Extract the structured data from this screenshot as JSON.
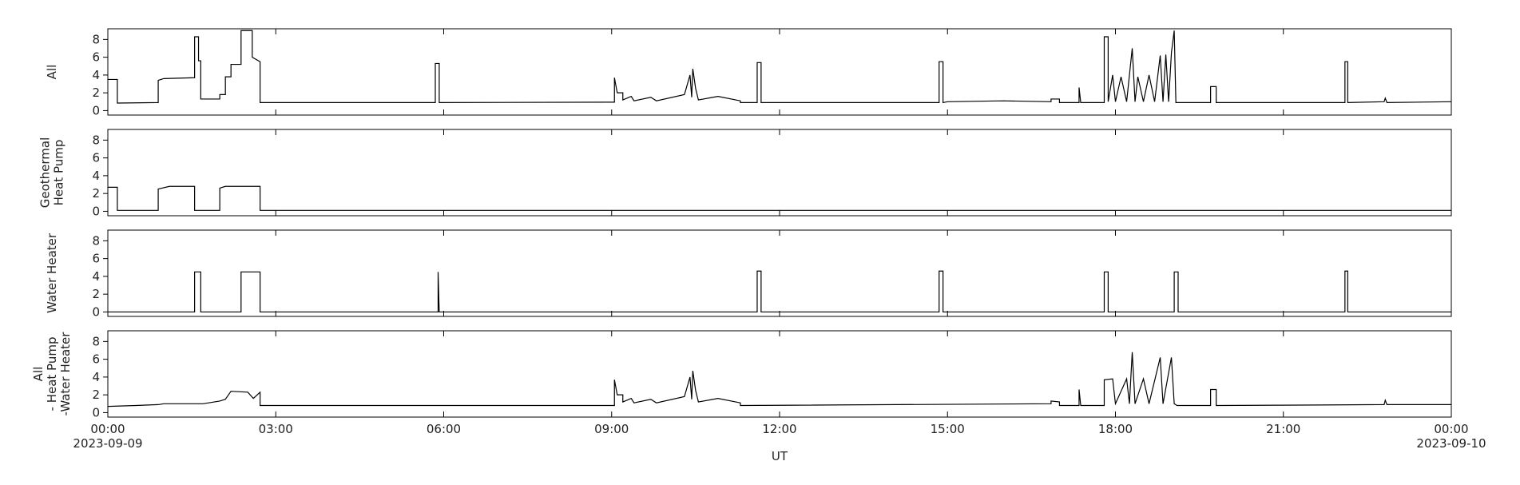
{
  "chart_data": [
    {
      "type": "line",
      "ylabel": [
        "All"
      ],
      "color": "#000000",
      "xlim": [
        0,
        24
      ],
      "xticks": [
        0,
        3,
        6,
        9,
        12,
        15,
        18,
        21,
        24
      ],
      "ylim": [
        -0.5,
        9.2
      ],
      "yticks": [
        0,
        2,
        4,
        6,
        8
      ],
      "x": [
        0,
        0.17,
        0.17,
        0.9,
        0.9,
        1.0,
        1.55,
        1.55,
        1.62,
        1.62,
        1.66,
        1.66,
        2.0,
        2.0,
        2.1,
        2.1,
        2.2,
        2.2,
        2.38,
        2.38,
        2.58,
        2.58,
        2.72,
        2.72,
        5.85,
        5.85,
        5.92,
        5.92,
        9.05,
        9.05,
        9.1,
        9.2,
        9.2,
        9.35,
        9.4,
        9.7,
        9.8,
        10.3,
        10.4,
        10.43,
        10.45,
        10.5,
        10.55,
        10.9,
        11.3,
        11.3,
        11.6,
        11.6,
        11.67,
        11.67,
        14.85,
        14.85,
        14.92,
        14.92,
        15.0,
        16.0,
        16.85,
        16.85,
        17.0,
        17.0,
        17.35,
        17.35,
        17.38,
        17.8,
        17.8,
        17.87,
        17.87,
        17.95,
        18.0,
        18.1,
        18.2,
        18.3,
        18.35,
        18.4,
        18.5,
        18.6,
        18.7,
        18.8,
        18.85,
        18.9,
        18.95,
        19.0,
        19.05,
        19.08,
        19.7,
        19.7,
        19.8,
        19.8,
        22.1,
        22.1,
        22.15,
        22.15,
        22.8,
        22.82,
        22.85,
        24
      ],
      "values": [
        3.5,
        3.5,
        0.85,
        0.9,
        3.4,
        3.6,
        3.7,
        8.3,
        8.3,
        5.6,
        5.6,
        1.3,
        1.3,
        1.8,
        1.8,
        3.8,
        3.8,
        5.2,
        5.2,
        9,
        9,
        6,
        5.5,
        0.9,
        0.9,
        5.3,
        5.3,
        0.9,
        0.95,
        3.7,
        2.0,
        2.0,
        1.2,
        1.6,
        1.1,
        1.5,
        1.1,
        1.8,
        4.0,
        1.5,
        4.7,
        2.5,
        1.2,
        1.6,
        1.1,
        0.9,
        0.9,
        5.4,
        5.4,
        0.9,
        0.9,
        5.5,
        5.5,
        0.9,
        1.0,
        1.1,
        1.0,
        1.3,
        1.3,
        0.9,
        0.9,
        2.6,
        0.9,
        0.9,
        8.3,
        8.3,
        1.0,
        4.0,
        1.0,
        3.8,
        1.0,
        7.0,
        1.0,
        3.8,
        1.0,
        4.0,
        1.0,
        6.2,
        1.0,
        6.3,
        1.0,
        6.5,
        9,
        0.9,
        0.9,
        2.7,
        2.7,
        0.9,
        0.9,
        5.5,
        5.5,
        0.9,
        1.0,
        1.4,
        0.9,
        1.0
      ]
    },
    {
      "type": "line",
      "ylabel": [
        "Geothermal",
        "Heat Pump"
      ],
      "color": "#000000",
      "xlim": [
        0,
        24
      ],
      "xticks": [
        0,
        3,
        6,
        9,
        12,
        15,
        18,
        21,
        24
      ],
      "ylim": [
        -0.5,
        9.2
      ],
      "yticks": [
        0,
        2,
        4,
        6,
        8
      ],
      "x": [
        0,
        0.17,
        0.17,
        0.9,
        0.9,
        1.1,
        1.55,
        1.55,
        2.0,
        2.0,
        2.1,
        2.72,
        2.72,
        24
      ],
      "values": [
        2.7,
        2.7,
        0.1,
        0.1,
        2.5,
        2.8,
        2.8,
        0.1,
        0.1,
        2.6,
        2.8,
        2.8,
        0.1,
        0.1
      ]
    },
    {
      "type": "line",
      "ylabel": [
        "Water Heater"
      ],
      "color": "#000000",
      "xlim": [
        0,
        24
      ],
      "xticks": [
        0,
        3,
        6,
        9,
        12,
        15,
        18,
        21,
        24
      ],
      "ylim": [
        -0.5,
        9.2
      ],
      "yticks": [
        0,
        2,
        4,
        6,
        8
      ],
      "x": [
        0,
        1.55,
        1.55,
        1.66,
        1.66,
        2.38,
        2.38,
        2.72,
        2.72,
        5.9,
        5.9,
        5.92,
        11.6,
        11.6,
        11.67,
        11.67,
        14.85,
        14.85,
        14.92,
        14.92,
        17.8,
        17.8,
        17.87,
        17.87,
        19.05,
        19.05,
        19.12,
        19.12,
        22.1,
        22.1,
        22.15,
        22.15,
        24
      ],
      "values": [
        0,
        0,
        4.5,
        4.5,
        0,
        0,
        4.5,
        4.5,
        0,
        0,
        4.5,
        0,
        0,
        4.6,
        4.6,
        0,
        0,
        4.6,
        4.6,
        0,
        0,
        4.5,
        4.5,
        0,
        0,
        4.5,
        4.5,
        0,
        0,
        4.6,
        4.6,
        0,
        0
      ]
    },
    {
      "type": "line",
      "ylabel": [
        "All",
        "- Heat Pump",
        "-Water Heater"
      ],
      "color": "#000000",
      "xlim": [
        0,
        24
      ],
      "xticks": [
        {
          "value": 0,
          "label": "00:00"
        },
        {
          "value": 3,
          "label": "03:00"
        },
        {
          "value": 6,
          "label": "06:00"
        },
        {
          "value": 9,
          "label": "09:00"
        },
        {
          "value": 12,
          "label": "12:00"
        },
        {
          "value": 15,
          "label": "15:00"
        },
        {
          "value": 18,
          "label": "18:00"
        },
        {
          "value": 21,
          "label": "21:00"
        },
        {
          "value": 24,
          "label": "00:00"
        }
      ],
      "date_labels": [
        {
          "value": 0,
          "label": "2023-09-09"
        },
        {
          "value": 24,
          "label": "2023-09-10"
        }
      ],
      "xlabel": "UT",
      "ylim": [
        -0.5,
        9.2
      ],
      "yticks": [
        0,
        2,
        4,
        6,
        8
      ],
      "x": [
        0,
        0.5,
        0.9,
        1.0,
        1.2,
        1.7,
        2.0,
        2.1,
        2.2,
        2.5,
        2.6,
        2.72,
        2.72,
        9.05,
        9.05,
        9.1,
        9.2,
        9.2,
        9.35,
        9.4,
        9.7,
        9.8,
        10.3,
        10.4,
        10.43,
        10.45,
        10.5,
        10.55,
        10.9,
        11.3,
        11.3,
        16.85,
        16.85,
        17.0,
        17.0,
        17.35,
        17.35,
        17.38,
        17.8,
        17.8,
        17.95,
        18.0,
        18.2,
        18.25,
        18.3,
        18.35,
        18.5,
        18.6,
        18.8,
        18.85,
        19.0,
        19.05,
        19.1,
        19.7,
        19.7,
        19.8,
        19.8,
        22.8,
        22.82,
        22.85,
        24
      ],
      "values": [
        0.7,
        0.8,
        0.9,
        1.0,
        1.0,
        1.0,
        1.3,
        1.5,
        2.4,
        2.3,
        1.6,
        2.3,
        0.8,
        0.8,
        3.7,
        2.0,
        2.0,
        1.2,
        1.6,
        1.1,
        1.5,
        1.1,
        1.8,
        4.0,
        1.5,
        4.7,
        2.5,
        1.2,
        1.6,
        1.1,
        0.8,
        1.0,
        1.3,
        1.2,
        0.8,
        0.8,
        2.6,
        0.8,
        0.8,
        3.7,
        3.8,
        1.0,
        3.8,
        1.0,
        6.8,
        1.0,
        3.8,
        1.0,
        6.2,
        1.0,
        6.2,
        1.0,
        0.8,
        0.8,
        2.6,
        2.6,
        0.8,
        0.9,
        1.4,
        0.9,
        0.9
      ]
    }
  ]
}
